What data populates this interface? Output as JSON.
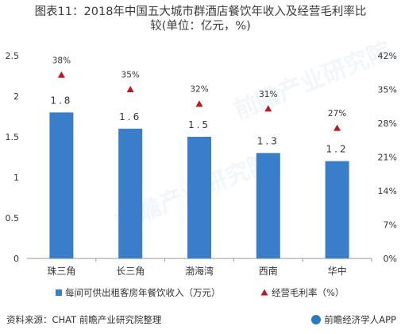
{
  "title_line1": "图表11：2018年中国五大城市群酒店餐饮年收入及经营毛利率比",
  "title_line2": "较(单位：亿元，%)",
  "source": "资料来源：CHAT 前瞻产业研究院整理",
  "brand": "前瞻经济学人APP",
  "watermark": "前瞻产业研究院",
  "colors": {
    "bar": "#3a7dc9",
    "marker": "#c0171f",
    "axis": "#999999"
  },
  "chart_data": {
    "type": "bar",
    "categories": [
      "珠三角",
      "长三角",
      "渤海湾",
      "西南",
      "华中"
    ],
    "series": [
      {
        "name": "每间可供出租客房年餐饮收入（万元）",
        "type": "bar",
        "axis": "left",
        "values": [
          1.8,
          1.6,
          1.5,
          1.3,
          1.2
        ],
        "labels": [
          "1.8",
          "1.6",
          "1.5",
          "1.3",
          "1.2"
        ]
      },
      {
        "name": "经营毛利率（%）",
        "type": "scatter",
        "marker": "triangle",
        "axis": "right",
        "values": [
          38,
          35,
          32,
          31,
          27
        ],
        "labels": [
          "38%",
          "35%",
          "32%",
          "31%",
          "27%"
        ]
      }
    ],
    "y_left": {
      "min": 0,
      "max": 2.5,
      "ticks": [
        "0",
        "0.5",
        "1",
        "1.5",
        "2",
        "2.5"
      ]
    },
    "y_right": {
      "min": 0,
      "max": 42,
      "ticks": [
        "0%",
        "7%",
        "14%",
        "21%",
        "28%",
        "35%",
        "42%"
      ]
    },
    "legend_position": "bottom",
    "grid": false
  }
}
